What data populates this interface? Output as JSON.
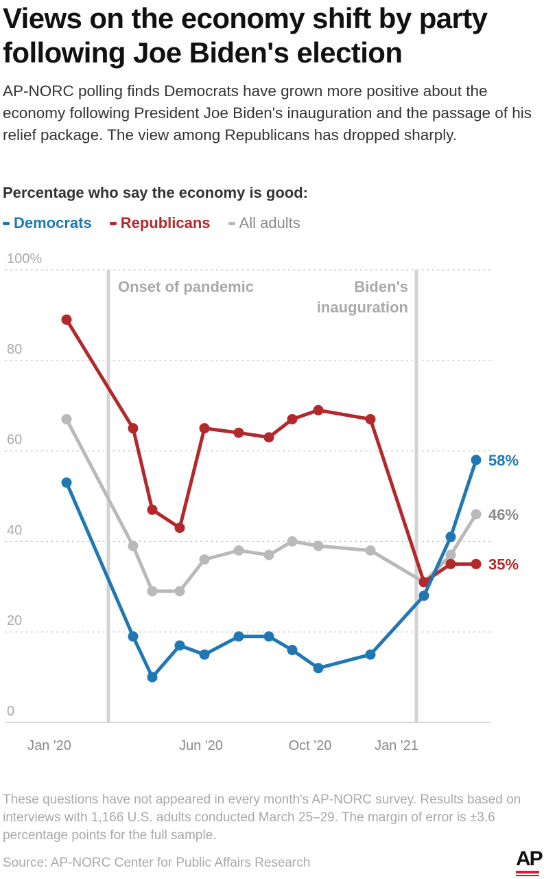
{
  "title": "Views on the economy shift by party following Joe Biden's election",
  "subtitle": "AP-NORC polling finds Democrats have grown more positive about the economy following President Joe Biden's inauguration and the passage of his relief package. The view among Republicans has dropped sharply.",
  "question": "Percentage who say the economy is good:",
  "colors": {
    "democrats": "#1f78b4",
    "republicans": "#b2282b",
    "all_adults": "#b9b9bb"
  },
  "chart_data": {
    "type": "line",
    "ylim": [
      0,
      100
    ],
    "yticks": [
      "100%",
      "80",
      "60",
      "40",
      "20",
      "0"
    ],
    "xticks": [
      "Jan '20",
      "Jun '20",
      "Oct '20",
      "Jan '21"
    ],
    "grid": "dotted horizontal",
    "legend": "top-left",
    "annotations": [
      {
        "label": "Onset of pandemic"
      },
      {
        "label_lines": [
          "Biden's",
          "inauguration"
        ]
      }
    ],
    "x": [
      "Feb '20",
      "Apr '20",
      "May '20",
      "Jun '20",
      "Jun '20",
      "Jul '20",
      "Aug '20",
      "Sep '20",
      "Oct '20",
      "Nov '20",
      "Dec '20",
      "Feb '21",
      "Mar '21",
      "Apr '21"
    ],
    "series": [
      {
        "name": "Democrats",
        "key": "democrats",
        "end_label": "58%",
        "values": [
          53,
          19,
          10,
          17,
          15,
          19,
          19,
          16,
          12,
          null,
          15,
          28,
          41,
          58
        ]
      },
      {
        "name": "Republicans",
        "key": "republicans",
        "end_label": "35%",
        "values": [
          89,
          65,
          47,
          43,
          65,
          64,
          63,
          67,
          69,
          null,
          67,
          31,
          35,
          35
        ]
      },
      {
        "name": "All adults",
        "key": "all_adults",
        "end_label": "46%",
        "values": [
          67,
          39,
          29,
          29,
          36,
          38,
          37,
          40,
          39,
          null,
          38,
          31,
          37,
          46
        ]
      }
    ]
  },
  "footnote": "These questions have not appeared in every month's AP-NORC survey. Results based on interviews with 1,166 U.S. adults conducted March 25–29. The margin of error is ±3.6 percentage points for the full sample.",
  "source": "Source: AP-NORC Center for Public Affairs Research",
  "logo": "AP"
}
